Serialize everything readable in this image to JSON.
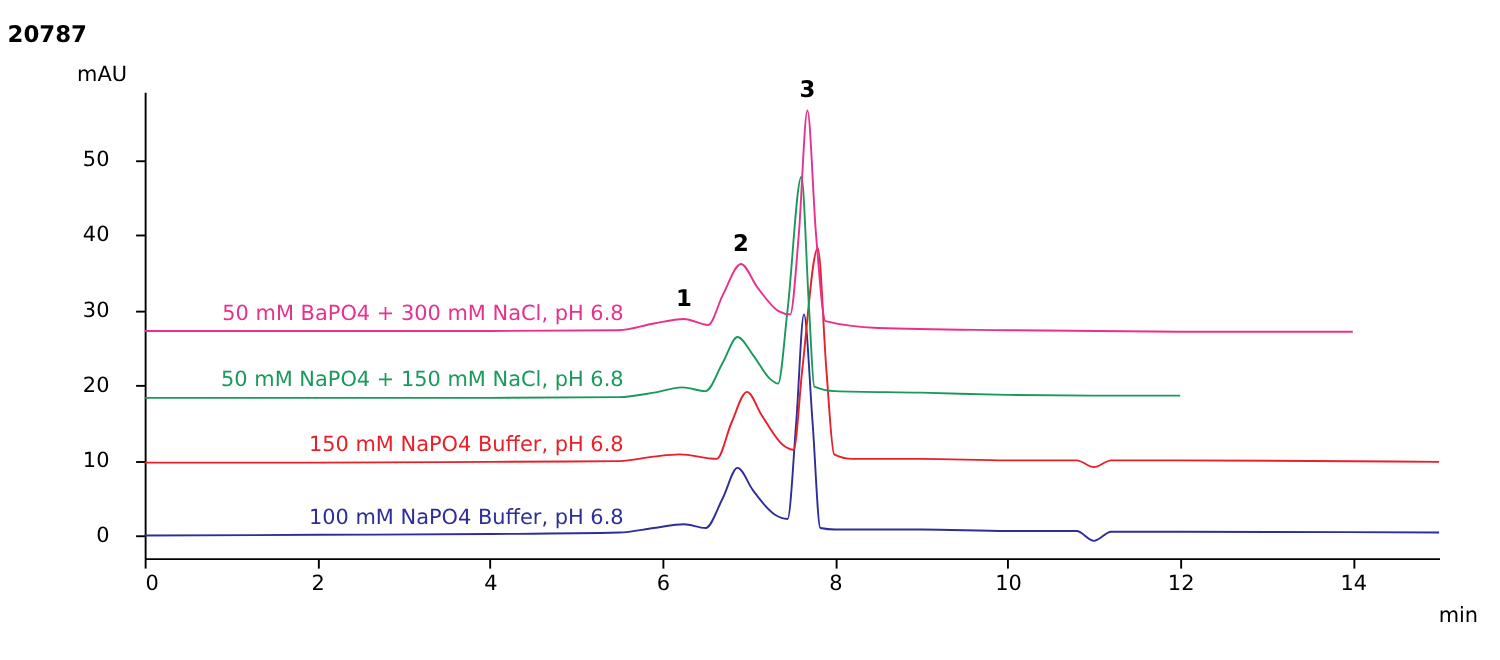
{
  "chart_data": {
    "type": "line",
    "title": "20787",
    "xlabel": "min",
    "ylabel": "mAU",
    "xlim": [
      0,
      15
    ],
    "xticks": [
      0,
      2,
      4,
      6,
      8,
      10,
      12,
      14
    ],
    "ylim": [
      -3,
      59
    ],
    "yticks": [
      0,
      10,
      20,
      30,
      40,
      50
    ],
    "grid": false,
    "legend": false,
    "marker": "none",
    "line_style": "solid",
    "series": [
      {
        "name": "100 mM NaPO4 Buffer, pH 6.8",
        "color": "#2e2e9a",
        "x": [
          0,
          2,
          4,
          5.5,
          5.9,
          6.25,
          6.5,
          6.7,
          6.87,
          7.05,
          7.3,
          7.45,
          7.55,
          7.64,
          7.74,
          7.83,
          8.0,
          9.0,
          10,
          10.8,
          11.0,
          11.2,
          12,
          15
        ],
        "values": [
          0,
          0.1,
          0.2,
          0.4,
          1.0,
          1.5,
          1.0,
          5,
          9.0,
          6,
          2.8,
          2.2,
          15,
          29.4,
          15,
          1.0,
          0.8,
          0.8,
          0.6,
          0.6,
          -0.7,
          0.5,
          0.5,
          0.4
        ]
      },
      {
        "name": "150 mM NaPO4 Buffer, pH 6.8",
        "color": "#e8202a",
        "x": [
          0,
          2,
          4,
          5.5,
          5.9,
          6.2,
          6.63,
          6.8,
          6.98,
          7.15,
          7.4,
          7.52,
          7.62,
          7.8,
          7.9,
          7.99,
          8.2,
          9,
          10,
          10.8,
          11.0,
          11.2,
          12,
          15
        ],
        "values": [
          9.7,
          9.7,
          9.8,
          9.9,
          10.5,
          10.8,
          10.2,
          15,
          19.1,
          16,
          12,
          11.4,
          22,
          38.2,
          22,
          10.8,
          10.2,
          10.2,
          10.0,
          10.0,
          9.1,
          10.0,
          10.0,
          9.8
        ]
      },
      {
        "name": "50 mM NaPO4 + 150 mM NaCl, pH 6.8",
        "color": "#1a9a5a",
        "x": [
          0,
          2,
          4,
          5.5,
          5.9,
          6.23,
          6.5,
          6.7,
          6.87,
          7.05,
          7.25,
          7.34,
          7.45,
          7.61,
          7.7,
          7.76,
          8,
          9,
          10,
          11,
          12
        ],
        "values": [
          18.3,
          18.3,
          18.3,
          18.4,
          19.0,
          19.7,
          19.2,
          23,
          26.4,
          24,
          20.8,
          20.2,
          30,
          47.7,
          30,
          19.8,
          19.2,
          19.0,
          18.7,
          18.6,
          18.6
        ]
      },
      {
        "name": "50 mM BaPO4 + 300 mM NaCl, pH 6.8",
        "color": "#e8308c",
        "x": [
          0,
          2,
          4,
          5.5,
          5.9,
          6.25,
          6.53,
          6.7,
          6.91,
          7.1,
          7.35,
          7.48,
          7.58,
          7.68,
          7.78,
          7.89,
          8.5,
          10,
          12,
          14
        ],
        "values": [
          27.2,
          27.2,
          27.2,
          27.3,
          28.2,
          28.8,
          28.0,
          32,
          36.1,
          33,
          29.8,
          29.4,
          40,
          56.5,
          40,
          28.5,
          27.6,
          27.3,
          27.1,
          27.1
        ]
      }
    ],
    "annotations": [
      {
        "text": "1",
        "x": 6.25,
        "y": 28.8
      },
      {
        "text": "2",
        "x": 6.91,
        "y": 36.1
      },
      {
        "text": "3",
        "x": 7.68,
        "y": 56.5
      }
    ]
  }
}
